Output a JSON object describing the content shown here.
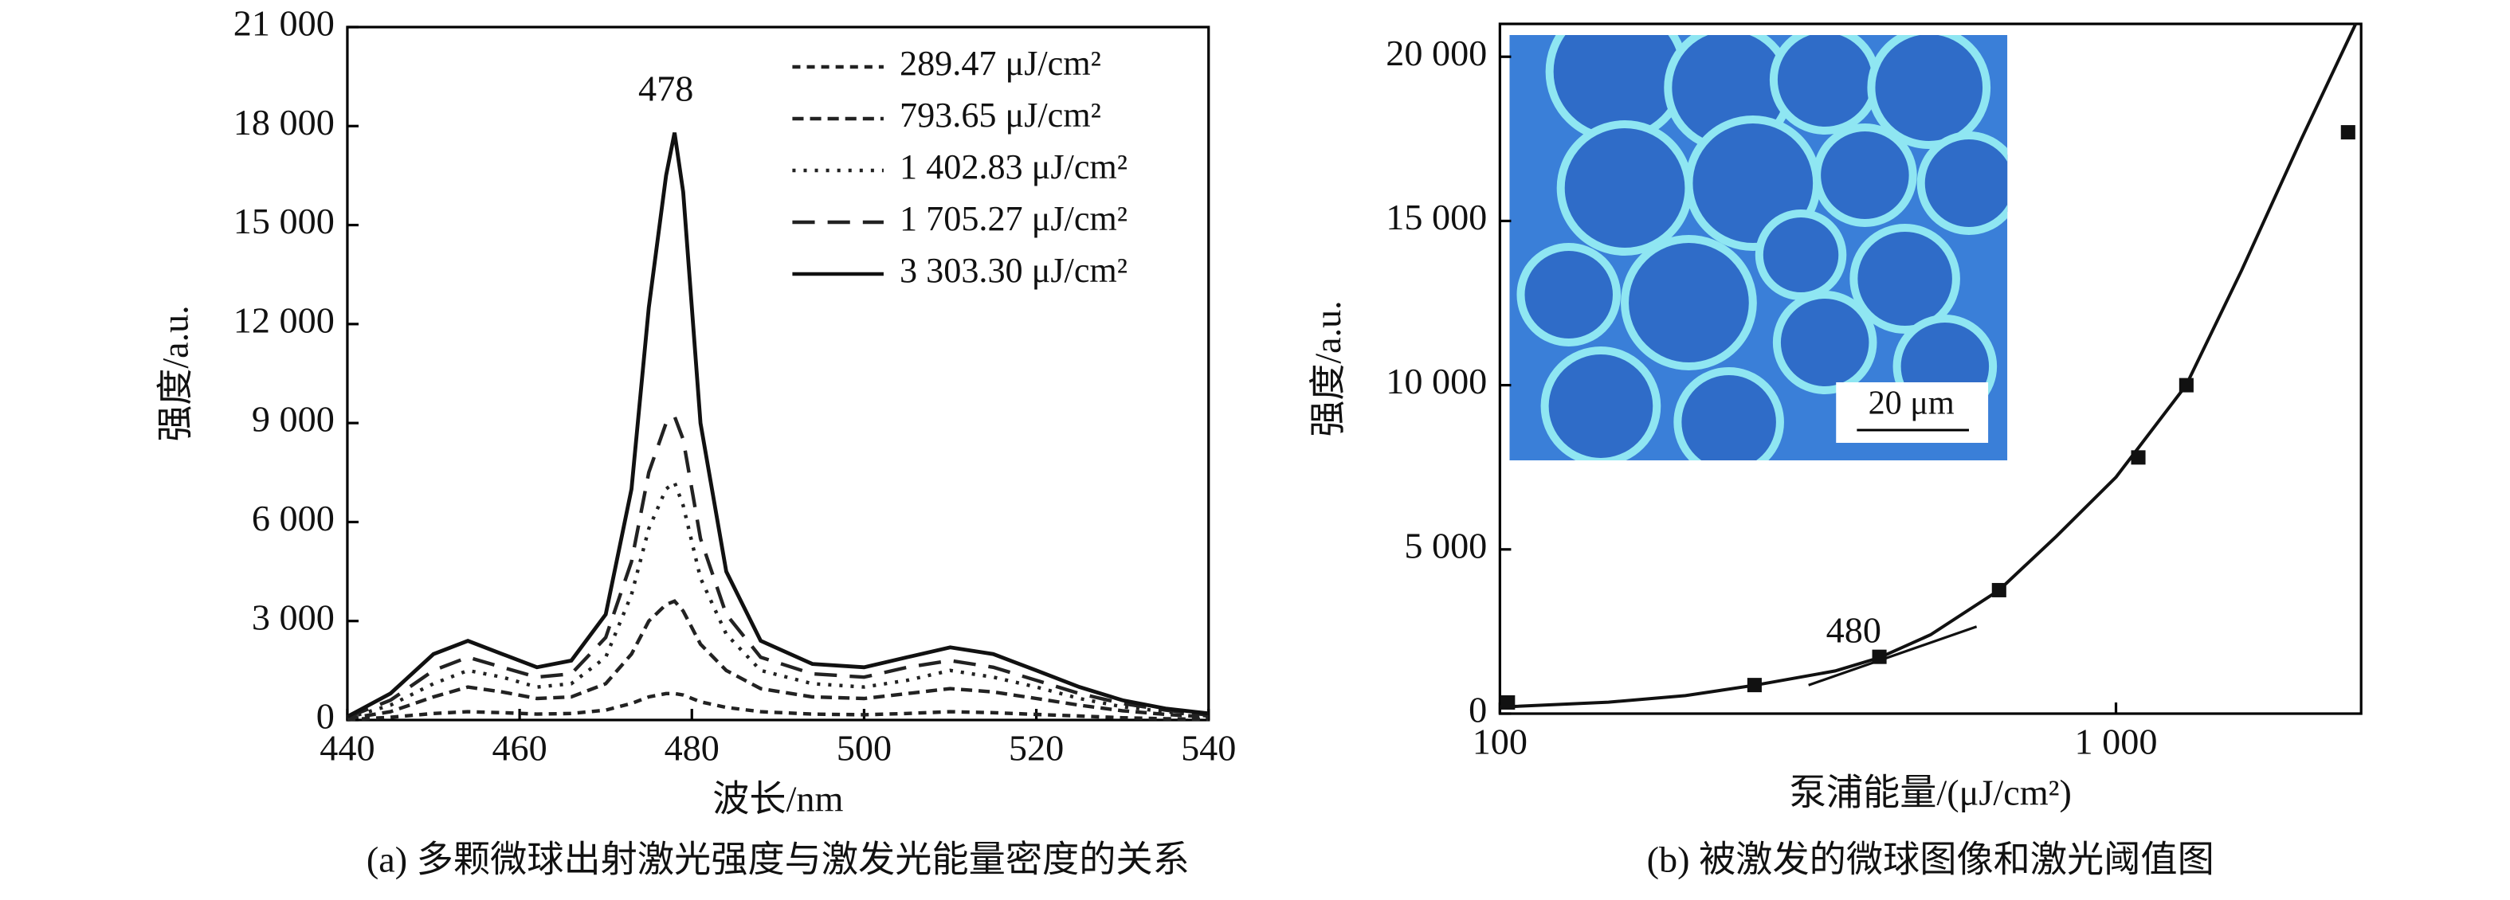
{
  "chart_data": [
    {
      "type": "line",
      "xlabel": "波长/nm",
      "ylabel": "强度/a.u.",
      "caption": "(a) 多颗微球出射激光强度与激发光能量密度的关系",
      "annotation": "478",
      "legend": "upper right",
      "xlim": [
        440,
        540
      ],
      "xticks": [
        440,
        460,
        480,
        500,
        520,
        540
      ],
      "ylim": [
        0,
        21000
      ],
      "yticks": [
        0,
        {
          "value": 3000,
          "label": "3 000"
        },
        {
          "value": 6000,
          "label": "6 000"
        },
        {
          "value": 9000,
          "label": "9 000"
        },
        {
          "value": 12000,
          "label": "12 000"
        },
        {
          "value": 15000,
          "label": "15 000"
        },
        {
          "value": 18000,
          "label": "18 000"
        },
        {
          "value": 21000,
          "label": "21 000"
        }
      ],
      "x": [
        440,
        445,
        450,
        454,
        458,
        462,
        466,
        470,
        473,
        475,
        477,
        478,
        479,
        481,
        484,
        488,
        494,
        500,
        505,
        510,
        515,
        520,
        525,
        530,
        535,
        540
      ],
      "series": [
        {
          "name": "289.47 μJ/cm²",
          "color": "#222",
          "dash": "5,4",
          "values": [
            10,
            80,
            200,
            250,
            220,
            180,
            200,
            300,
            500,
            700,
            800,
            800,
            760,
            550,
            380,
            250,
            180,
            160,
            200,
            250,
            220,
            170,
            120,
            70,
            40,
            20
          ]
        },
        {
          "name": "793.65 μJ/cm²",
          "color": "#222",
          "dash": "7,4",
          "values": [
            40,
            250,
            700,
            1000,
            850,
            650,
            700,
            1100,
            2000,
            3000,
            3500,
            3600,
            3300,
            2300,
            1500,
            950,
            700,
            650,
            800,
            950,
            850,
            650,
            450,
            280,
            170,
            90
          ]
        },
        {
          "name": "1 402.83 μJ/cm²",
          "color": "#222",
          "dash": "2,5",
          "values": [
            60,
            450,
            1100,
            1500,
            1300,
            1000,
            1100,
            1900,
            3800,
            5800,
            7000,
            7200,
            6500,
            4300,
            2600,
            1500,
            1100,
            1000,
            1200,
            1500,
            1300,
            1000,
            650,
            400,
            250,
            120
          ]
        },
        {
          "name": "1 705.27 μJ/cm²",
          "color": "#222",
          "dash": "14,8",
          "values": [
            80,
            600,
            1500,
            1900,
            1600,
            1300,
            1400,
            2500,
            4800,
            7500,
            9000,
            9200,
            8500,
            5500,
            3200,
            1900,
            1400,
            1300,
            1600,
            1800,
            1600,
            1200,
            800,
            500,
            300,
            150
          ]
        },
        {
          "name": "3 303.30 μJ/cm²",
          "color": "#111",
          "dash": "none",
          "values": [
            100,
            800,
            2000,
            2400,
            2000,
            1600,
            1800,
            3200,
            7000,
            12500,
            16500,
            17800,
            16000,
            9000,
            4500,
            2400,
            1700,
            1600,
            1900,
            2200,
            2000,
            1500,
            1000,
            600,
            350,
            200
          ]
        }
      ]
    },
    {
      "type": "scatter",
      "xlabel": "泵浦能量/(μJ/cm²)",
      "ylabel": "强度/a.u.",
      "caption": "(b) 被激发的微球图像和激光阈值图",
      "annotation": "480",
      "inset_scale": "20 μm",
      "xscale": "log",
      "xlim": [
        100,
        2500
      ],
      "xticks": [
        100,
        {
          "value": 1000,
          "label": "1 000"
        }
      ],
      "ylim": [
        0,
        21000
      ],
      "yticks": [
        0,
        {
          "value": 5000,
          "label": "5 000"
        },
        {
          "value": 10000,
          "label": "10 000"
        },
        {
          "value": 15000,
          "label": "15 000"
        },
        {
          "value": 20000,
          "label": "20 000"
        }
      ],
      "x": [
        103,
        259,
        413,
        646,
        1087,
        1301,
        2381
      ],
      "values": [
        340,
        870,
        1730,
        3760,
        7800,
        10000,
        17700
      ],
      "color": "#111",
      "fit": {
        "x": [
          100,
          150,
          200,
          260,
          350,
          413,
          500,
          646,
          800,
          1000,
          1300,
          1600,
          2000,
          2450
        ],
        "values": [
          200,
          350,
          550,
          870,
          1300,
          1700,
          2400,
          3760,
          5400,
          7200,
          10000,
          13500,
          17500,
          21000
        ]
      },
      "tangent": {
        "x": [
          317,
          594
        ],
        "values": [
          870,
          2650
        ]
      }
    }
  ]
}
